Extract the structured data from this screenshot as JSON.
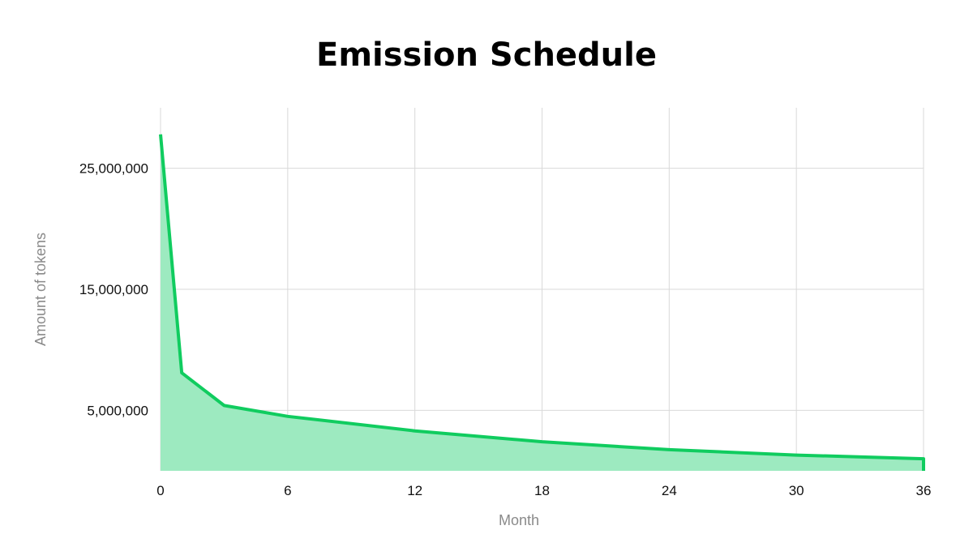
{
  "chart_data": {
    "type": "area",
    "title": "Emission Schedule",
    "xlabel": "Month",
    "ylabel": "Amount of tokens",
    "x_ticks": [
      "0",
      "6",
      "12",
      "18",
      "24",
      "30",
      "36"
    ],
    "y_ticks": [
      "25,000,000",
      "15,000,000",
      "5,000,000"
    ],
    "xlim": [
      0,
      36
    ],
    "ylim": [
      0,
      30000000
    ],
    "grid": true,
    "series": [
      {
        "x": [
          0,
          1,
          3,
          6,
          12,
          18,
          24,
          30,
          36
        ],
        "values": [
          27800000,
          8100000,
          5400000,
          4500000,
          3300000,
          2400000,
          1750000,
          1300000,
          1000000
        ]
      }
    ],
    "colors": {
      "line": "#10cc5f",
      "fill": "#9deac0"
    }
  }
}
